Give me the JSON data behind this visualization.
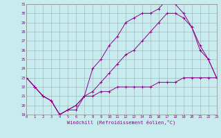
{
  "xlabel": "Windchill (Refroidissement éolien,°C)",
  "bg_color": "#c8eced",
  "line_color": "#8b008b",
  "grid_color": "#a0b8c0",
  "xlim": [
    0,
    23
  ],
  "ylim": [
    19,
    31
  ],
  "xticks": [
    0,
    1,
    2,
    3,
    4,
    5,
    6,
    7,
    8,
    9,
    10,
    11,
    12,
    13,
    14,
    15,
    16,
    17,
    18,
    19,
    20,
    21,
    22,
    23
  ],
  "yticks": [
    19,
    20,
    21,
    22,
    23,
    24,
    25,
    26,
    27,
    28,
    29,
    30,
    31
  ],
  "line1_x": [
    0,
    1,
    2,
    3,
    4,
    5,
    6,
    7,
    8,
    9,
    10,
    11,
    12,
    13,
    14,
    15,
    16,
    17,
    18,
    19,
    20,
    21,
    22,
    23
  ],
  "line1_y": [
    23,
    22,
    21,
    20.5,
    19,
    19.5,
    19.5,
    21,
    21,
    21.5,
    21.5,
    22,
    22,
    22,
    22,
    22,
    22.5,
    22.5,
    22.5,
    23,
    23,
    23,
    23,
    23
  ],
  "line2_x": [
    0,
    1,
    2,
    3,
    4,
    5,
    6,
    7,
    8,
    9,
    10,
    11,
    12,
    13,
    14,
    15,
    16,
    17,
    18,
    19,
    20,
    21,
    22,
    23
  ],
  "line2_y": [
    23,
    22,
    21,
    20.5,
    19,
    19.5,
    20,
    21,
    24,
    25,
    26.5,
    27.5,
    29,
    29.5,
    30,
    30,
    30.5,
    31.5,
    31,
    30,
    28.5,
    26,
    25,
    23
  ],
  "line3_x": [
    0,
    1,
    2,
    3,
    4,
    5,
    6,
    7,
    8,
    9,
    10,
    11,
    12,
    13,
    14,
    15,
    16,
    17,
    18,
    19,
    20,
    21,
    22,
    23
  ],
  "line3_y": [
    23,
    22,
    21,
    20.5,
    19,
    19.5,
    20,
    21,
    21.5,
    22.5,
    23.5,
    24.5,
    25.5,
    26,
    27,
    28,
    29,
    30,
    30,
    29.5,
    28.5,
    26.5,
    25,
    23
  ]
}
